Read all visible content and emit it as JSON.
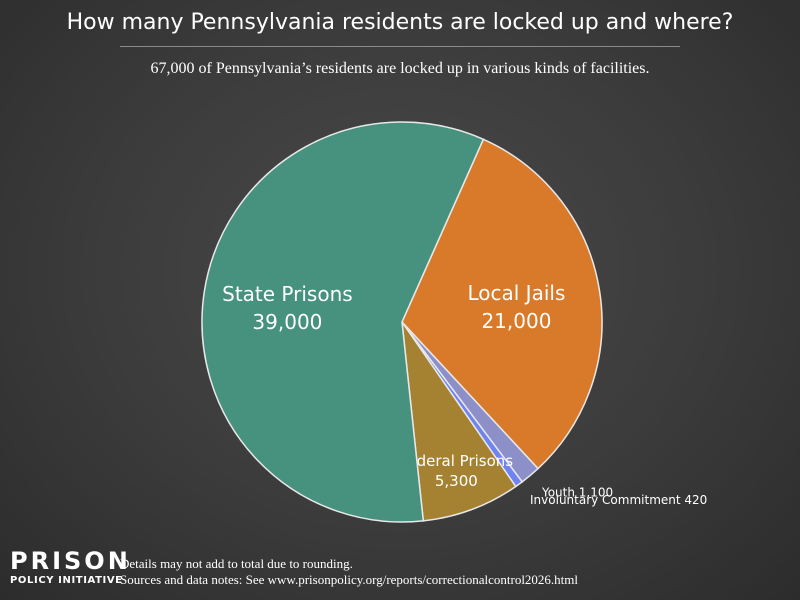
{
  "header": {
    "title": "How many Pennsylvania residents are locked up and where?",
    "subtitle": "67,000 of Pennsylvania’s residents are locked up in various kinds of facilities."
  },
  "chart_data": {
    "type": "pie",
    "slices": [
      {
        "label": "Local Jails",
        "value": 21000,
        "value_label": "21,000",
        "color": "#d97a2b",
        "label_style": "inside"
      },
      {
        "label": "Youth",
        "value": 1100,
        "value_label": "1,100",
        "color": "#8d8fc9",
        "label_style": "outside"
      },
      {
        "label": "Involuntary Commitment",
        "value": 420,
        "value_label": "420",
        "color": "#6f84f2",
        "label_style": "outside"
      },
      {
        "label": "Federal Prisons",
        "value": 5300,
        "value_label": "5,300",
        "color": "#a58231",
        "label_style": "inside"
      },
      {
        "label": "State Prisons",
        "value": 39000,
        "value_label": "39,000",
        "color": "#47927f",
        "label_style": "inside"
      }
    ]
  },
  "footer": {
    "logo_line1": "PRISON",
    "logo_line2": "POLICY INITIATIVE",
    "note1": "Details may not add to total due to rounding.",
    "note2": "Sources and data notes: See www.prisonpolicy.org/reports/correctionalcontrol2026.html"
  }
}
